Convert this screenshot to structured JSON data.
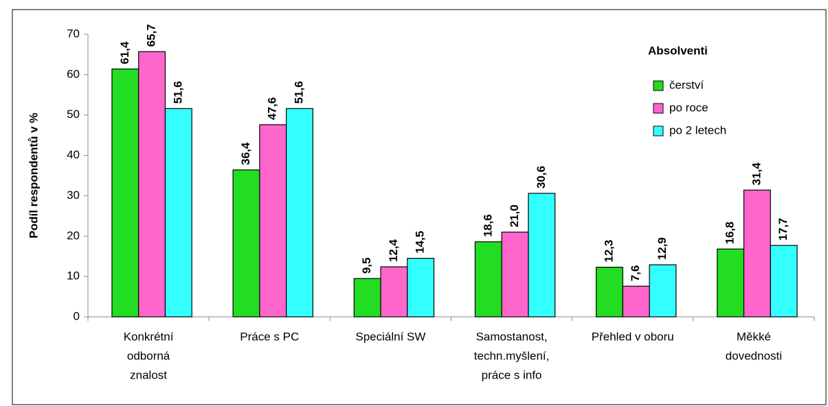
{
  "chart_data": {
    "type": "bar",
    "y_label": "Podíl respondentů v %",
    "categories": [
      [
        "Konkrétní",
        "odborná",
        "znalost"
      ],
      [
        "Práce s PC"
      ],
      [
        "Speciální SW"
      ],
      [
        "Samostanost,",
        "techn.myšlení,",
        "práce s info"
      ],
      [
        "Přehled v oboru"
      ],
      [
        "Měkké",
        "dovednosti"
      ]
    ],
    "legend_title": "Absolventi",
    "series": [
      {
        "name": "čerství",
        "color": "#22dd22",
        "values": [
          61.4,
          36.4,
          9.5,
          18.6,
          12.3,
          16.8
        ],
        "value_labels": [
          "61,4",
          "36,4",
          "9,5",
          "18,6",
          "12,3",
          "16,8"
        ]
      },
      {
        "name": "po roce",
        "color": "#ff66cc",
        "values": [
          65.7,
          47.6,
          12.4,
          21.0,
          7.6,
          31.4
        ],
        "value_labels": [
          "65,7",
          "47,6",
          "12,4",
          "21,0",
          "7,6",
          "31,4"
        ]
      },
      {
        "name": "po 2 letech",
        "color": "#33ffff",
        "values": [
          51.6,
          51.6,
          14.5,
          30.6,
          12.9,
          17.7
        ],
        "value_labels": [
          "51,6",
          "51,6",
          "14,5",
          "30,6",
          "12,9",
          "17,7"
        ]
      }
    ],
    "ylim": [
      0,
      70
    ],
    "yticks": [
      0,
      10,
      20,
      30,
      40,
      50,
      60,
      70
    ],
    "legend": "upper right"
  }
}
